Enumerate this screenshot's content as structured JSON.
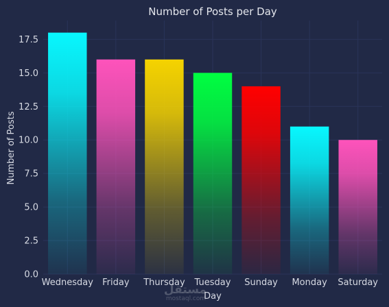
{
  "chart_data": {
    "type": "bar",
    "title": "Number of Posts per Day",
    "xlabel": "Day",
    "ylabel": "Number of Posts",
    "categories": [
      "Wednesday",
      "Friday",
      "Thursday",
      "Tuesday",
      "Sunday",
      "Monday",
      "Saturday"
    ],
    "values": [
      18,
      16,
      16,
      15,
      14,
      11,
      10
    ],
    "bar_colors": [
      "#08F7FE",
      "#FE53BB",
      "#F5D300",
      "#00FF41",
      "#FF0000",
      "#08F7FE",
      "#FE53BB"
    ],
    "ylim": [
      0,
      18.9
    ],
    "yticks": [
      0,
      2.5,
      5,
      7.5,
      10,
      12.5,
      15,
      17.5
    ],
    "ytick_labels": [
      "0.0",
      "2.5",
      "5.0",
      "7.5",
      "10.0",
      "12.5",
      "15.0",
      "17.5"
    ],
    "grid": true,
    "legend": "none",
    "background": "#212946",
    "grid_color": "#2A3459",
    "text_color": "#d7dae3"
  },
  "watermark": {
    "arabic": "مستقل",
    "latin": "mostaql.com"
  }
}
